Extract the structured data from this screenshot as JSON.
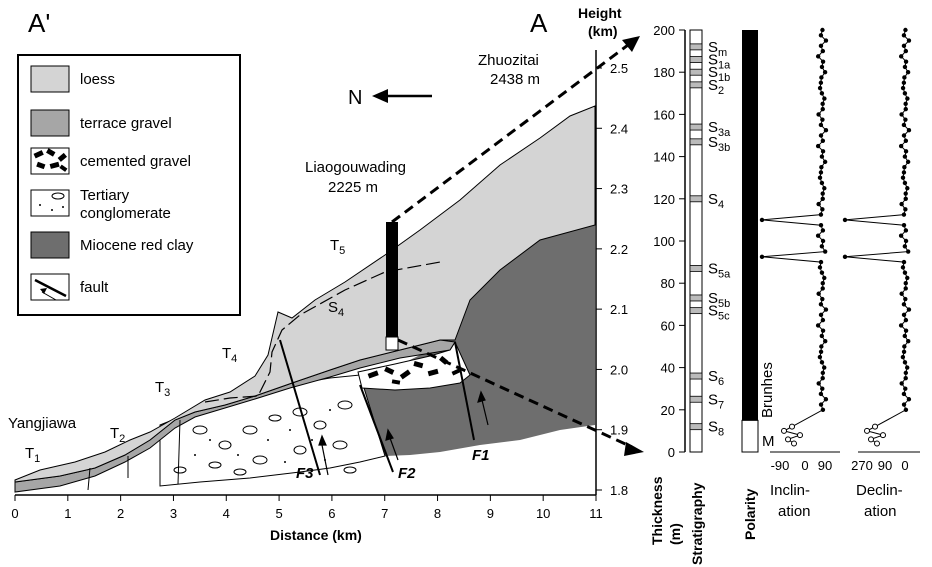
{
  "labels": {
    "a_prime": "A'",
    "a": "A",
    "height_title": "Height",
    "height_unit": "(km)",
    "north": "N",
    "distance_title": "Distance (km)",
    "thickness_title": "Thickness",
    "thickness_unit": "(m)",
    "stratigraphy_title": "Stratigraphy",
    "polarity_title": "Polarity",
    "inclination_title_1": "Inclin-",
    "inclination_title_2": "ation",
    "declination_title_1": "Declin-",
    "declination_title_2": "ation",
    "brunhes": "Brunhes",
    "matuyama": "M"
  },
  "places": {
    "zhuozitai_name": "Zhuozitai",
    "zhuozitai_height": "2438 m",
    "liaogouwading_name": "Liaogouwading",
    "liaogouwading_height": "2225 m",
    "yangjiawa": "Yangjiawa"
  },
  "terraces": [
    {
      "base": "T",
      "sub": "1"
    },
    {
      "base": "T",
      "sub": "2"
    },
    {
      "base": "T",
      "sub": "3"
    },
    {
      "base": "T",
      "sub": "4"
    },
    {
      "base": "T",
      "sub": "5"
    }
  ],
  "s4_label": {
    "base": "S",
    "sub": "4"
  },
  "faults": [
    "F3",
    "F2",
    "F1"
  ],
  "legend": [
    {
      "name": "loess",
      "label": "loess",
      "color": "#d4d4d4"
    },
    {
      "name": "terrace-gravel",
      "label": "terrace gravel",
      "color": "#a6a6a6"
    },
    {
      "name": "cemented-gravel",
      "label": "cemented gravel",
      "color": "#ffffff"
    },
    {
      "name": "tertiary-conglomerate",
      "label_1": "Tertiary",
      "label_2": "conglomerate",
      "color": "#ffffff"
    },
    {
      "name": "miocene-red-clay",
      "label": "Miocene red clay",
      "color": "#6e6e6e"
    },
    {
      "name": "fault",
      "label": "fault",
      "color": "#000000"
    }
  ],
  "distance_ticks": [
    "0",
    "1",
    "2",
    "3",
    "4",
    "5",
    "6",
    "7",
    "8",
    "9",
    "10",
    "11"
  ],
  "height_ticks": [
    "1.8",
    "1.9",
    "2.0",
    "2.1",
    "2.2",
    "2.3",
    "2.4",
    "2.5"
  ],
  "thickness_ticks": [
    "0",
    "20",
    "40",
    "60",
    "80",
    "100",
    "120",
    "140",
    "160",
    "180",
    "200"
  ],
  "stratigraphy": [
    {
      "base": "S",
      "sub": "m",
      "depth": 192
    },
    {
      "base": "S",
      "sub": "1a",
      "depth": 186
    },
    {
      "base": "S",
      "sub": "1b",
      "depth": 180
    },
    {
      "base": "S",
      "sub": "2",
      "depth": 174
    },
    {
      "base": "S",
      "sub": "3a",
      "depth": 154
    },
    {
      "base": "S",
      "sub": "3b",
      "depth": 147
    },
    {
      "base": "S",
      "sub": "4",
      "depth": 120
    },
    {
      "base": "S",
      "sub": "5a",
      "depth": 87
    },
    {
      "base": "S",
      "sub": "5b",
      "depth": 73
    },
    {
      "base": "S",
      "sub": "5c",
      "depth": 67
    },
    {
      "base": "S",
      "sub": "6",
      "depth": 36
    },
    {
      "base": "S",
      "sub": "7",
      "depth": 25
    },
    {
      "base": "S",
      "sub": "8",
      "depth": 12
    }
  ],
  "polarity": {
    "brunhes_depth_range": [
      15,
      200
    ],
    "matuyama_depth_range": [
      0,
      15
    ]
  },
  "inclination_ticks": [
    "-90",
    "0",
    "90"
  ],
  "declination_ticks": [
    "270",
    "90",
    "0"
  ],
  "colors": {
    "loess": "#d4d4d4",
    "terrace_gravel": "#a6a6a6",
    "red_clay": "#6e6e6e",
    "black": "#000000"
  }
}
